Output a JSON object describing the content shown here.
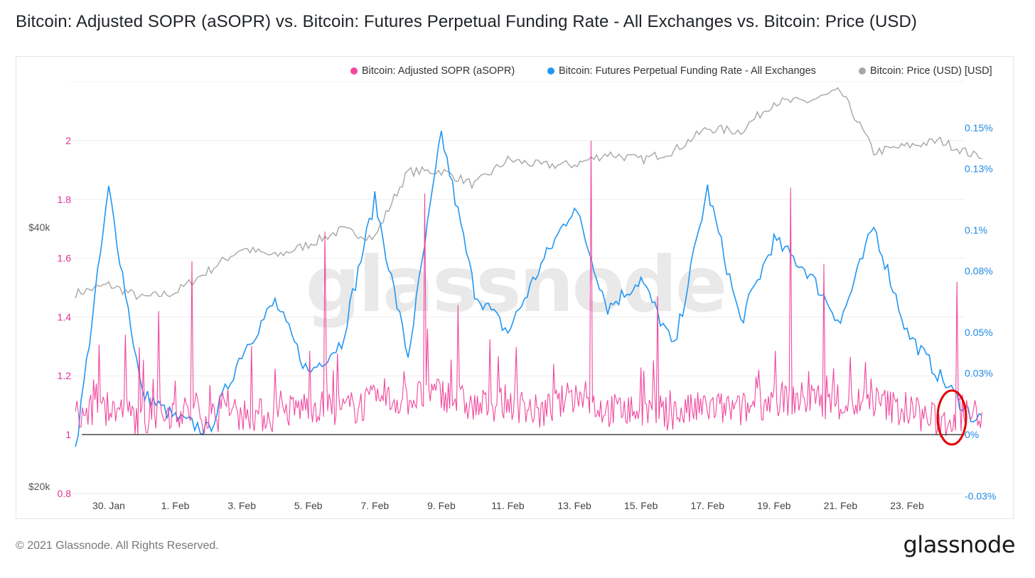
{
  "title": "Bitcoin: Adjusted SOPR (aSOPR) vs. Bitcoin: Futures Perpetual Funding Rate - All Exchanges vs. Bitcoin: Price (USD)",
  "footer": "© 2021 Glassnode. All Rights Reserved.",
  "brand": "glassnode",
  "watermark": "glassnode",
  "colors": {
    "sopr": "#f0489e",
    "funding": "#2196f3",
    "price": "#a6a6a6",
    "left_axis": "#e0309a",
    "right_axis": "#1e88e5",
    "annotation": "#e00000"
  },
  "legend": [
    {
      "label": "Bitcoin: Adjusted SOPR (aSOPR)",
      "color": "#f0489e"
    },
    {
      "label": "Bitcoin: Futures Perpetual Funding Rate - All Exchanges",
      "color": "#2196f3"
    },
    {
      "label": "Bitcoin: Price (USD) [USD]",
      "color": "#a6a6a6"
    }
  ],
  "chart_data": {
    "type": "line",
    "x_ticks": [
      "30. Jan",
      "1. Feb",
      "3. Feb",
      "5. Feb",
      "7. Feb",
      "9. Feb",
      "11. Feb",
      "13. Feb",
      "15. Feb",
      "17. Feb",
      "19. Feb",
      "21. Feb",
      "23. Feb"
    ],
    "x_range": [
      "2021-01-29",
      "2021-02-25"
    ],
    "left_axis": {
      "ticks": [
        "0.8",
        "1",
        "1.2",
        "1.4",
        "1.6",
        "1.8",
        "2"
      ],
      "ylim": [
        0.8,
        2.0
      ]
    },
    "right_axis": {
      "ticks": [
        "-0.03%",
        "0%",
        "0.03%",
        "0.05%",
        "0.08%",
        "0.1%",
        "0.13%",
        "0.15%"
      ],
      "ylim": [
        -0.03,
        0.15
      ]
    },
    "price_axis": {
      "ticks": [
        "$20k",
        "$40k"
      ],
      "scale": "log"
    },
    "baseline": 1,
    "series": [
      {
        "name": "Bitcoin: Adjusted SOPR (aSOPR)",
        "axis": "left",
        "x": [
          "2021-01-29",
          "2021-01-30",
          "2021-01-31",
          "2021-02-01",
          "2021-02-02",
          "2021-02-03",
          "2021-02-04",
          "2021-02-05",
          "2021-02-06",
          "2021-02-07",
          "2021-02-08",
          "2021-02-09",
          "2021-02-10",
          "2021-02-11",
          "2021-02-12",
          "2021-02-13",
          "2021-02-14",
          "2021-02-15",
          "2021-02-16",
          "2021-02-17",
          "2021-02-18",
          "2021-02-19",
          "2021-02-20",
          "2021-02-21",
          "2021-02-22",
          "2021-02-23",
          "2021-02-24",
          "2021-02-25"
        ],
        "y": [
          1.05,
          1.08,
          1.04,
          1.07,
          1.05,
          1.06,
          1.05,
          1.09,
          1.07,
          1.1,
          1.11,
          1.13,
          1.08,
          1.1,
          1.06,
          1.12,
          1.07,
          1.07,
          1.06,
          1.08,
          1.07,
          1.11,
          1.11,
          1.09,
          1.1,
          1.07,
          1.03,
          1.06
        ],
        "peaks": [
          {
            "x": "2021-01-30",
            "y": 1.34
          },
          {
            "x": "2021-01-31",
            "y": 1.42
          },
          {
            "x": "2021-02-01",
            "y": 1.59
          },
          {
            "x": "2021-02-05",
            "y": 1.69
          },
          {
            "x": "2021-02-08",
            "y": 1.82
          },
          {
            "x": "2021-02-09",
            "y": 1.44
          },
          {
            "x": "2021-02-13",
            "y": 2.0
          },
          {
            "x": "2021-02-15",
            "y": 1.47
          },
          {
            "x": "2021-02-19",
            "y": 1.84
          },
          {
            "x": "2021-02-20",
            "y": 1.58
          },
          {
            "x": "2021-02-24",
            "y": 1.52
          }
        ]
      },
      {
        "name": "Bitcoin: Futures Perpetual Funding Rate - All Exchanges",
        "axis": "right",
        "x": [
          "2021-01-29",
          "2021-01-30",
          "2021-01-31",
          "2021-02-01",
          "2021-02-02",
          "2021-02-03",
          "2021-02-04",
          "2021-02-05",
          "2021-02-06",
          "2021-02-07",
          "2021-02-08",
          "2021-02-09",
          "2021-02-10",
          "2021-02-11",
          "2021-02-12",
          "2021-02-13",
          "2021-02-14",
          "2021-02-15",
          "2021-02-16",
          "2021-02-17",
          "2021-02-18",
          "2021-02-19",
          "2021-02-20",
          "2021-02-21",
          "2021-02-22",
          "2021-02-23",
          "2021-02-24",
          "2021-02-25"
        ],
        "y": [
          -0.007,
          0.12,
          0.02,
          0.008,
          0.002,
          0.04,
          0.065,
          0.03,
          0.045,
          0.115,
          0.038,
          0.147,
          0.07,
          0.05,
          0.083,
          0.112,
          0.062,
          0.076,
          0.042,
          0.12,
          0.055,
          0.095,
          0.08,
          0.055,
          0.102,
          0.05,
          0.028,
          0.008
        ]
      },
      {
        "name": "Bitcoin: Price (USD) [USD]",
        "axis": "price",
        "x": [
          "2021-01-29",
          "2021-01-30",
          "2021-01-31",
          "2021-02-01",
          "2021-02-02",
          "2021-02-03",
          "2021-02-04",
          "2021-02-05",
          "2021-02-06",
          "2021-02-07",
          "2021-02-08",
          "2021-02-09",
          "2021-02-10",
          "2021-02-11",
          "2021-02-12",
          "2021-02-13",
          "2021-02-14",
          "2021-02-15",
          "2021-02-16",
          "2021-02-17",
          "2021-02-18",
          "2021-02-19",
          "2021-02-20",
          "2021-02-21",
          "2021-02-22",
          "2021-02-23",
          "2021-02-24",
          "2021-02-25"
        ],
        "y": [
          33500,
          34300,
          33100,
          33600,
          35600,
          37800,
          37000,
          38200,
          39700,
          38900,
          46400,
          46500,
          44800,
          47900,
          47200,
          47300,
          48700,
          47900,
          49100,
          52100,
          51700,
          55900,
          56000,
          57500,
          48900,
          49700,
          50400,
          48500
        ]
      }
    ],
    "annotation": {
      "shape": "ellipse",
      "around": "latest funding rate near 0%"
    }
  }
}
